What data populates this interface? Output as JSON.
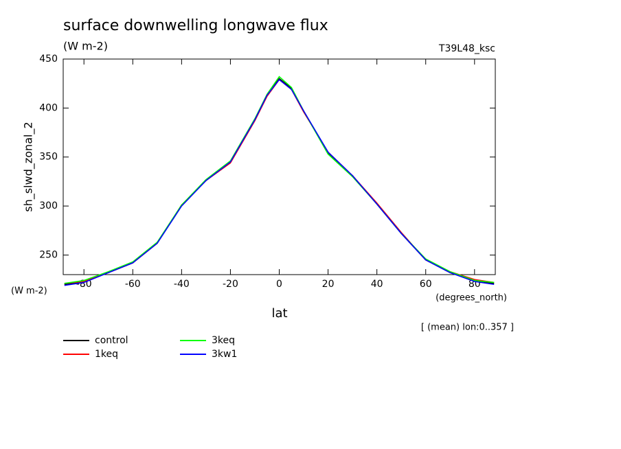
{
  "chart_data": {
    "type": "line",
    "title": "surface downwelling longwave flux",
    "subtitle": "(W m-2)",
    "annotations": [
      "T39L48_ksc",
      "[ (mean) lon:0..357 ]"
    ],
    "ylabel": "sh_slwd_zonal_2",
    "y_units_label": "(W m-2)",
    "xlabel": "lat",
    "x_units_label": "(degrees_north)",
    "x": [
      -88,
      -80,
      -70,
      -60,
      -50,
      -40,
      -30,
      -20,
      -10,
      -5,
      0,
      5,
      10,
      20,
      30,
      40,
      50,
      60,
      70,
      80,
      88
    ],
    "series": [
      {
        "name": "control",
        "color": "#000000",
        "values": [
          220,
          223,
          232,
          242,
          262,
          301,
          326,
          345,
          388,
          413,
          430,
          420,
          397,
          354,
          331,
          302,
          272,
          245,
          232,
          224,
          221
        ]
      },
      {
        "name": "1keq",
        "color": "#ff0000",
        "values": [
          221,
          223,
          232,
          242,
          262,
          301,
          326,
          344,
          387,
          412,
          429,
          419,
          396,
          355,
          331,
          303,
          273,
          245,
          233,
          225,
          222
        ]
      },
      {
        "name": "3keq",
        "color": "#00ff00",
        "values": [
          221,
          224,
          233,
          243,
          263,
          301,
          327,
          346,
          389,
          414,
          432,
          421,
          397,
          353,
          330,
          302,
          272,
          246,
          233,
          224,
          222
        ]
      },
      {
        "name": "3kw1",
        "color": "#0000ff",
        "values": [
          219,
          222,
          232,
          242,
          262,
          300,
          326,
          345,
          388,
          413,
          429,
          419,
          397,
          355,
          331,
          302,
          272,
          245,
          232,
          223,
          220
        ]
      }
    ],
    "xlim": [
      -88.5,
      88.5
    ],
    "xticks": [
      -80,
      -60,
      -40,
      -20,
      0,
      20,
      40,
      60,
      80
    ],
    "ylim": [
      230,
      450
    ],
    "yticks": [
      250,
      300,
      350,
      400,
      450
    ],
    "grid": false
  }
}
